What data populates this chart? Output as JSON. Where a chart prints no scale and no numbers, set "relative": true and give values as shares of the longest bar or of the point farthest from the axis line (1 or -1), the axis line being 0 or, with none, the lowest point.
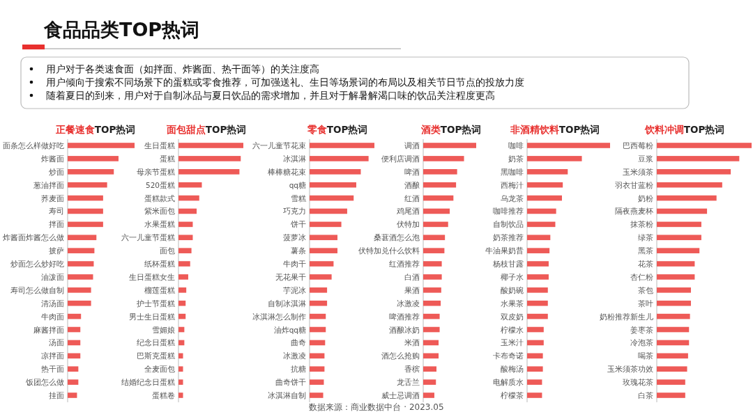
{
  "chart_data": [
    {
      "type": "other",
      "title": "食品品类TOP热词",
      "annotations": [
        "用户对于各类速食面（如拌面、炸酱面、热干面等）的关注度高",
        "用户倾向于搜索不同场景下的蛋糕或零食推荐，可加强送礼、生日等场景词的布局以及相关节日节点的投放力度",
        "随着夏日的到来，用户对于自制冰品与夏日饮品的需求增加，并且对于解暑解渴口味的饮品关注程度更高",
        "数据来源：商业数据中台 · 2023.05"
      ]
    },
    {
      "type": "bar",
      "orientation": "horizontal",
      "relative": true,
      "color": "#ee5a57",
      "title": "正餐速食TOP热词",
      "categories": [
        "面条怎么样做好吃",
        "炸酱面",
        "炒面",
        "葱油拌面",
        "荞麦面",
        "寿司",
        "拌面",
        "炸酱面炸酱怎么做",
        "披萨",
        "炒面怎么炒好吃",
        "油泼面",
        "寿司怎么做自制",
        "清汤面",
        "牛肉面",
        "麻酱拌面",
        "汤面",
        "凉拌面",
        "热干面",
        "饭团怎么做",
        "挂面"
      ],
      "values": [
        1,
        0.76,
        0.69,
        0.59,
        0.53,
        0.53,
        0.53,
        0.43,
        0.4,
        0.39,
        0.38,
        0.35,
        0.35,
        0.2,
        0.19,
        0.19,
        0.19,
        0.16,
        0.16,
        0.14
      ]
    },
    {
      "type": "bar",
      "orientation": "horizontal",
      "relative": true,
      "color": "#ee5a57",
      "title": "面包甜点TOP热词",
      "categories": [
        "生日蛋糕",
        "蛋糕",
        "母亲节蛋糕",
        "520蛋糕",
        "蛋糕款式",
        "紫米面包",
        "水果蛋糕",
        "六一儿童节蛋糕",
        "面包",
        "纸杯蛋糕",
        "生日蛋糕女生",
        "榴莲蛋糕",
        "护士节蛋糕",
        "男士生日蛋糕",
        "雪媚娘",
        "纪念日蛋糕",
        "巴斯克蛋糕",
        "全麦面包",
        "结婚纪念日蛋糕",
        "蛋糕卷"
      ],
      "values": [
        1,
        0.96,
        0.94,
        0.36,
        0.32,
        0.28,
        0.22,
        0.22,
        0.2,
        0.18,
        0.15,
        0.12,
        0.11,
        0.11,
        0.09,
        0.09,
        0.07,
        0.07,
        0.07,
        0.07
      ]
    },
    {
      "type": "bar",
      "orientation": "horizontal",
      "relative": true,
      "color": "#ee5a57",
      "title": "零食TOP热词",
      "categories": [
        "六一儿童节花束",
        "冰淇淋",
        "棒棒糖花束",
        "qq糖",
        "雪糕",
        "巧克力",
        "饼干",
        "菠萝冰",
        "薯条",
        "牛肉干",
        "无花果干",
        "芋泥冰",
        "自制冰淇淋",
        "冰淇淋怎么制作",
        "油炸qq糖",
        "曲奇",
        "冰激凌",
        "抗糖",
        "曲奇饼干",
        "冰淇淋自制"
      ],
      "values": [
        1,
        0.91,
        0.79,
        0.72,
        0.68,
        0.58,
        0.49,
        0.43,
        0.43,
        0.37,
        0.34,
        0.27,
        0.27,
        0.25,
        0.25,
        0.24,
        0.23,
        0.23,
        0.22,
        0.21
      ]
    },
    {
      "type": "bar",
      "orientation": "horizontal",
      "relative": true,
      "color": "#ee5a57",
      "title": "酒类TOP热词",
      "categories": [
        "调酒",
        "便利店调酒",
        "啤酒",
        "酒酿",
        "红酒",
        "鸡尾酒",
        "伏特加",
        "桑葚酒怎么泡",
        "伏特加兑什么饮料",
        "红酒推荐",
        "白酒",
        "果酒",
        "冰激凌",
        "啤酒推荐",
        "酒酿冰奶",
        "米酒",
        "酒怎么抢购",
        "香槟",
        "龙舌兰",
        "威士忌调酒"
      ],
      "values": [
        1,
        0.77,
        0.64,
        0.62,
        0.57,
        0.5,
        0.47,
        0.41,
        0.4,
        0.35,
        0.35,
        0.34,
        0.33,
        0.31,
        0.31,
        0.29,
        0.29,
        0.25,
        0.24,
        0.21
      ]
    },
    {
      "type": "bar",
      "orientation": "horizontal",
      "relative": true,
      "color": "#ee5a57",
      "title": "非酒精饮料TOP热词",
      "categories": [
        "咖啡",
        "奶茶",
        "黑咖啡",
        "西梅汁",
        "乌龙茶",
        "咖啡推荐",
        "自制饮品",
        "奶茶推荐",
        "牛油果奶昔",
        "杨枝甘露",
        "椰子水",
        "酸奶碗",
        "水果茶",
        "双皮奶",
        "柠檬水",
        "玉米汁",
        "卡布奇诺",
        "酸梅汤",
        "电解质水",
        "柠檬茶"
      ],
      "values": [
        1,
        0.66,
        0.49,
        0.43,
        0.42,
        0.35,
        0.34,
        0.28,
        0.27,
        0.26,
        0.26,
        0.25,
        0.25,
        0.25,
        0.2,
        0.2,
        0.19,
        0.19,
        0.18,
        0.18
      ]
    },
    {
      "type": "bar",
      "orientation": "horizontal",
      "relative": true,
      "color": "#ee5a57",
      "title": "饮料冲调TOP热词",
      "categories": [
        "巴西莓粉",
        "豆浆",
        "玉米须茶",
        "羽衣甘蓝粉",
        "奶粉",
        "隔夜燕麦杯",
        "抹茶粉",
        "绿茶",
        "黑茶",
        "花茶",
        "杏仁粉",
        "茶包",
        "茶叶",
        "奶粉推荐新生儿",
        "姜枣茶",
        "冷泡茶",
        "喝茶",
        "玉米须茶功效",
        "玫瑰花茶",
        "白茶"
      ],
      "values": [
        1,
        0.87,
        0.78,
        0.69,
        0.63,
        0.53,
        0.47,
        0.47,
        0.45,
        0.4,
        0.4,
        0.36,
        0.36,
        0.35,
        0.34,
        0.34,
        0.33,
        0.32,
        0.3,
        0.3
      ]
    }
  ]
}
